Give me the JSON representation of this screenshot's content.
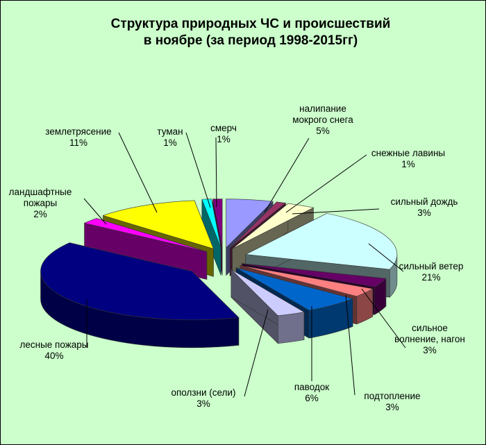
{
  "chart_data": {
    "type": "pie",
    "title": "Структура  природных ЧС и происшествий\nв ноябре (за период 1998-2015гг)",
    "colors_note": "exploded 3D pie",
    "slices": [
      {
        "name": "налипание мокрого снега",
        "label_lines": [
          "налипание",
          "мокрого снега"
        ],
        "percent_label": "5%",
        "value": 5,
        "color": "#9999ff"
      },
      {
        "name": "снежные лавины",
        "label_lines": [
          "снежные лавины"
        ],
        "percent_label": "1%",
        "value": 1,
        "color": "#993366"
      },
      {
        "name": "сильный дождь",
        "label_lines": [
          "сильный дождь"
        ],
        "percent_label": "3%",
        "value": 3,
        "color": "#ffffcc"
      },
      {
        "name": "сильный ветер",
        "label_lines": [
          "сильный ветер"
        ],
        "percent_label": "21%",
        "value": 21,
        "color": "#ccffff"
      },
      {
        "name": "сильное волнение, нагон",
        "label_lines": [
          "сильное",
          "волнение, нагон"
        ],
        "percent_label": "3%",
        "value": 3,
        "color": "#660066"
      },
      {
        "name": "подтопление",
        "label_lines": [
          "подтопление"
        ],
        "percent_label": "3%",
        "value": 3,
        "color": "#ff8080"
      },
      {
        "name": "паводок",
        "label_lines": [
          "паводок"
        ],
        "percent_label": "6%",
        "value": 6,
        "color": "#0066cc"
      },
      {
        "name": "оползни (сели)",
        "label_lines": [
          "оползни (сели)"
        ],
        "percent_label": "3%",
        "value": 3,
        "color": "#ccccff"
      },
      {
        "name": "лесные пожары",
        "label_lines": [
          "лесные пожары"
        ],
        "percent_label": "40%",
        "value": 40,
        "color": "#000080"
      },
      {
        "name": "ландшафтные пожары",
        "label_lines": [
          "ландшафтные",
          "пожары"
        ],
        "percent_label": "2%",
        "value": 2,
        "color": "#ff00ff"
      },
      {
        "name": "землетрясение",
        "label_lines": [
          "землетрясение"
        ],
        "percent_label": "11%",
        "value": 11,
        "color": "#ffff00"
      },
      {
        "name": "туман",
        "label_lines": [
          "туман"
        ],
        "percent_label": "1%",
        "value": 1,
        "color": "#00ffff"
      },
      {
        "name": "смерч",
        "label_lines": [
          "смерч"
        ],
        "percent_label": "1%",
        "value": 1,
        "color": "#800080"
      }
    ]
  }
}
